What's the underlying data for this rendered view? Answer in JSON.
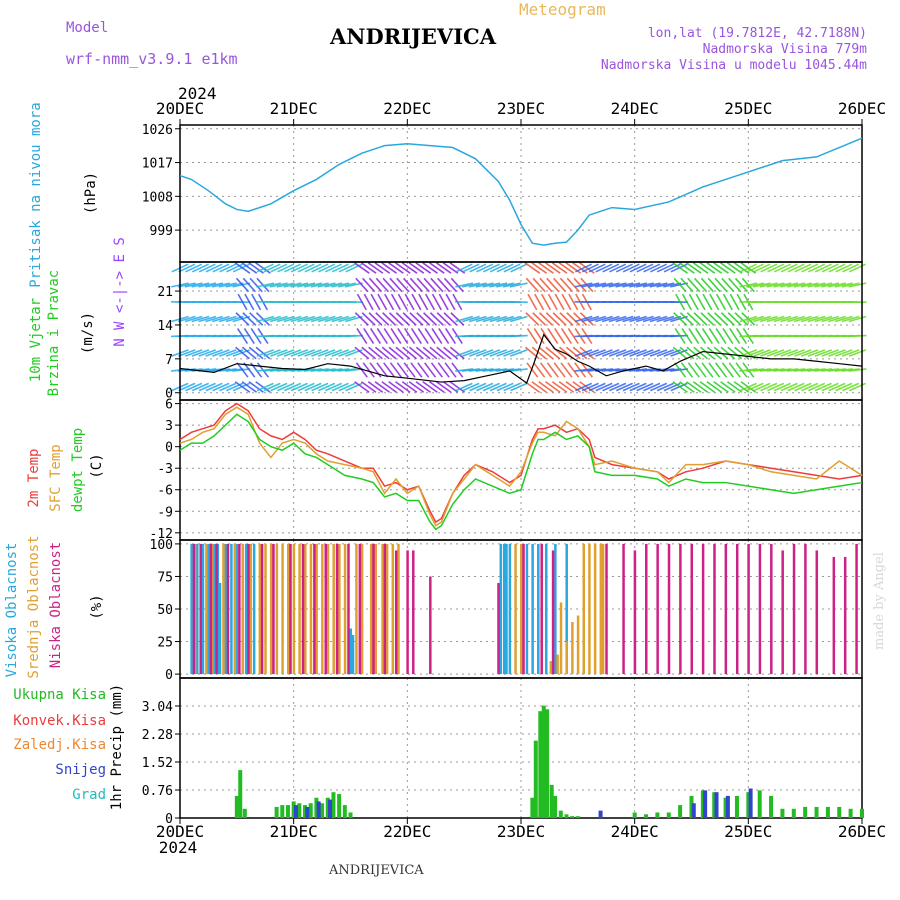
{
  "header": {
    "model_label": "Model",
    "model_name": "wrf-nmm_v3.9.1  e1km",
    "location": "ANDRIJEVICA",
    "chart_kind": "Meteogram",
    "lonlat": "lon,lat (19.7812E, 42.7188N)",
    "altitude": "Nadmorska Visina 779m",
    "model_altitude": "Nadmorska Visina u modelu 1045.44m"
  },
  "footer": {
    "location": "ANDRIJEVICA",
    "credit": "made by Angel"
  },
  "x_axis": {
    "year": "2024",
    "dates": [
      "20DEC",
      "21DEC",
      "22DEC",
      "23DEC",
      "24DEC",
      "25DEC",
      "26DEC"
    ]
  },
  "colors": {
    "pressure": "#2aa7de",
    "temp2m": "#ee3b3b",
    "sfc": "#e0a030",
    "dew": "#22cc22",
    "cloud_high": "#2aa7de",
    "cloud_mid": "#e0a030",
    "cloud_low": "#cc2288",
    "rain_total": "#22bb22",
    "rain_snow": "#3344cc",
    "rain_grad": "#22bbbb",
    "wind_axis": "#9944ff"
  },
  "chart_data": [
    {
      "type": "line",
      "panel": "pressure",
      "ylabels": [
        "Pritisak na nivou mora",
        "(hPa)"
      ],
      "yticks": [
        "1026",
        "1017",
        "1008",
        "999"
      ],
      "ylim": [
        990.5,
        1027
      ],
      "x": [
        0,
        0.1,
        0.25,
        0.4,
        0.5,
        0.6,
        0.8,
        1.0,
        1.2,
        1.4,
        1.6,
        1.8,
        2.0,
        2.2,
        2.4,
        2.6,
        2.8,
        2.9,
        3.0,
        3.1,
        3.2,
        3.3,
        3.4,
        3.5,
        3.6,
        3.7,
        3.8,
        4.0,
        4.3,
        4.6,
        5.0,
        5.3,
        5.6,
        5.8,
        6.0
      ],
      "values": [
        1013.5,
        1012.5,
        1009.5,
        1006.0,
        1004.5,
        1004.0,
        1006.0,
        1009.5,
        1012.5,
        1016.5,
        1019.5,
        1021.5,
        1022.0,
        1021.5,
        1021.0,
        1018.0,
        1012.0,
        1007.0,
        1000.5,
        995.5,
        995.0,
        995.5,
        995.8,
        999.0,
        1003.0,
        1004.0,
        1005.0,
        1004.5,
        1006.5,
        1010.5,
        1014.5,
        1017.5,
        1018.5,
        1021.0,
        1023.5
      ]
    },
    {
      "type": "line",
      "panel": "wind",
      "ylabels": [
        "10m Vjetar",
        "Brzina i Pravac",
        "(m/s)"
      ],
      "yticks": [
        "21",
        "14",
        "7",
        "0"
      ],
      "ylim": [
        -1.5,
        27
      ],
      "direction_legend": "N  W <-|-> E  S",
      "x": [
        0,
        0.3,
        0.5,
        0.7,
        0.9,
        1.1,
        1.3,
        1.5,
        1.65,
        1.8,
        2.0,
        2.3,
        2.5,
        2.7,
        2.9,
        3.05,
        3.12,
        3.2,
        3.3,
        3.4,
        3.5,
        3.6,
        3.75,
        3.9,
        4.1,
        4.25,
        4.4,
        4.6,
        4.8,
        5.0,
        5.2,
        5.4,
        5.6,
        5.8,
        6.0
      ],
      "values": [
        5.0,
        4.2,
        6.0,
        5.5,
        5.0,
        4.8,
        6.0,
        5.5,
        4.5,
        3.5,
        3.0,
        2.2,
        2.5,
        3.5,
        4.5,
        2.0,
        6.5,
        12.0,
        9.0,
        8.0,
        6.5,
        5.5,
        3.5,
        4.5,
        5.5,
        4.5,
        6.5,
        8.5,
        8.0,
        7.5,
        7.0,
        7.0,
        6.5,
        6.0,
        5.5
      ]
    },
    {
      "type": "line",
      "panel": "temperature",
      "ylabels": [
        "2m Temp",
        "SFC Temp",
        "dewpt Temp",
        "(C)"
      ],
      "yticks": [
        "6",
        "3",
        "0",
        "-3",
        "-6",
        "-9",
        "-12"
      ],
      "ylim": [
        -13.0,
        6.5
      ],
      "x": [
        0,
        0.1,
        0.2,
        0.3,
        0.4,
        0.5,
        0.6,
        0.7,
        0.8,
        0.9,
        1.0,
        1.1,
        1.2,
        1.3,
        1.45,
        1.6,
        1.7,
        1.8,
        1.9,
        2.0,
        2.1,
        2.2,
        2.25,
        2.3,
        2.4,
        2.5,
        2.6,
        2.75,
        2.9,
        3.0,
        3.1,
        3.15,
        3.2,
        3.3,
        3.4,
        3.5,
        3.6,
        3.65,
        3.8,
        4.0,
        4.2,
        4.3,
        4.45,
        4.6,
        4.8,
        5.0,
        5.2,
        5.4,
        5.6,
        5.8,
        6.0
      ],
      "series": [
        {
          "name": "2m Temp",
          "values": [
            1.0,
            2.0,
            2.5,
            3.0,
            5.0,
            6.0,
            5.0,
            2.5,
            1.5,
            1.0,
            2.0,
            1.0,
            -0.5,
            -1.0,
            -2.0,
            -3.0,
            -3.0,
            -5.5,
            -5.0,
            -6.0,
            -5.5,
            -9.0,
            -10.5,
            -10.0,
            -6.5,
            -4.0,
            -2.5,
            -3.5,
            -5.0,
            -4.0,
            1.0,
            2.5,
            2.5,
            3.0,
            2.0,
            2.5,
            1.0,
            -1.5,
            -2.5,
            -3.0,
            -3.5,
            -4.5,
            -3.5,
            -3.0,
            -2.0,
            -2.5,
            -3.0,
            -3.5,
            -4.0,
            -4.5,
            -4.0
          ]
        },
        {
          "name": "SFC Temp",
          "values": [
            0.5,
            1.0,
            2.0,
            2.5,
            4.5,
            5.5,
            4.5,
            0.5,
            -1.5,
            0.5,
            1.0,
            0.5,
            -1.0,
            -2.0,
            -2.5,
            -3.0,
            -3.5,
            -6.5,
            -4.5,
            -6.5,
            -5.5,
            -9.5,
            -11.0,
            -10.5,
            -6.5,
            -4.5,
            -2.5,
            -4.0,
            -5.5,
            -3.5,
            0.5,
            2.0,
            2.0,
            1.5,
            3.5,
            2.5,
            0.0,
            -2.5,
            -2.0,
            -3.0,
            -3.5,
            -5.0,
            -2.5,
            -2.5,
            -2.0,
            -2.5,
            -3.5,
            -4.0,
            -4.5,
            -2.0,
            -4.0
          ]
        },
        {
          "name": "dewpt Temp",
          "values": [
            -0.5,
            0.5,
            0.5,
            1.5,
            3.0,
            4.5,
            3.5,
            1.0,
            0.0,
            -0.5,
            0.5,
            -1.0,
            -1.5,
            -2.5,
            -4.0,
            -4.5,
            -5.0,
            -7.0,
            -6.5,
            -7.5,
            -7.5,
            -10.5,
            -11.5,
            -11.0,
            -8.0,
            -6.0,
            -4.5,
            -5.5,
            -6.5,
            -6.0,
            -1.0,
            1.0,
            1.0,
            2.0,
            1.0,
            1.5,
            0.0,
            -3.5,
            -4.0,
            -4.0,
            -4.5,
            -5.5,
            -4.5,
            -5.0,
            -5.0,
            -5.5,
            -6.0,
            -6.5,
            -6.0,
            -5.5,
            -5.0
          ]
        }
      ]
    },
    {
      "type": "bar",
      "panel": "cloud",
      "ylabels": [
        "Visoka Oblacnost",
        "Srednja Oblacnost",
        "Niska Oblacnost",
        "(%)"
      ],
      "yticks": [
        "100",
        "75",
        "50",
        "25",
        "0"
      ],
      "ylim": [
        -3,
        103
      ],
      "series": [
        {
          "name": "Visoka Oblacnost",
          "x": [
            0.1,
            0.15,
            0.2,
            0.25,
            0.3,
            0.33,
            0.35,
            0.4,
            0.45,
            0.5,
            0.58,
            0.65,
            1.5,
            1.52,
            2.82,
            2.85,
            2.87,
            2.9,
            3.05,
            3.1,
            3.15,
            3.22,
            3.3,
            3.4
          ],
          "values": [
            100,
            100,
            100,
            100,
            100,
            100,
            70,
            100,
            100,
            100,
            100,
            100,
            35,
            30,
            100,
            100,
            100,
            100,
            100,
            100,
            100,
            100,
            100,
            100
          ]
        },
        {
          "name": "Srednja Oblacnost",
          "x": [
            0.13,
            0.23,
            0.28,
            0.38,
            0.48,
            0.55,
            0.62,
            0.7,
            0.75,
            0.8,
            0.85,
            0.9,
            0.95,
            1.0,
            1.05,
            1.1,
            1.15,
            1.2,
            1.25,
            1.3,
            1.35,
            1.4,
            1.45,
            1.55,
            1.6,
            1.68,
            1.72,
            1.78,
            1.82,
            1.87,
            1.92,
            2.95,
            3.0,
            3.26,
            3.32,
            3.35,
            3.4,
            3.45,
            3.5,
            3.55,
            3.6,
            3.65,
            3.7,
            3.72
          ],
          "values": [
            100,
            100,
            100,
            100,
            100,
            100,
            100,
            100,
            100,
            100,
            100,
            100,
            100,
            100,
            100,
            100,
            100,
            100,
            100,
            100,
            100,
            100,
            100,
            100,
            100,
            100,
            100,
            100,
            100,
            100,
            100,
            100,
            100,
            10,
            15,
            55,
            25,
            40,
            45,
            100,
            100,
            100,
            100,
            100
          ]
        },
        {
          "name": "Niska Oblacnost",
          "x": [
            0.12,
            0.18,
            0.27,
            0.32,
            0.42,
            0.52,
            0.6,
            0.72,
            0.82,
            0.97,
            1.08,
            1.18,
            1.28,
            1.38,
            1.48,
            1.58,
            1.7,
            1.8,
            1.9,
            2.0,
            2.05,
            2.2,
            2.8,
            3.02,
            3.18,
            3.28,
            3.75,
            3.9,
            4.0,
            4.1,
            4.2,
            4.3,
            4.4,
            4.5,
            4.6,
            4.7,
            4.8,
            4.9,
            5.0,
            5.1,
            5.2,
            5.3,
            5.4,
            5.5,
            5.6,
            5.75,
            5.85,
            5.95
          ],
          "values": [
            100,
            100,
            100,
            100,
            100,
            100,
            100,
            100,
            100,
            100,
            100,
            100,
            100,
            100,
            100,
            100,
            100,
            100,
            95,
            95,
            95,
            75,
            70,
            100,
            100,
            95,
            100,
            100,
            95,
            100,
            100,
            100,
            100,
            100,
            100,
            100,
            100,
            100,
            100,
            100,
            100,
            95,
            100,
            100,
            95,
            90,
            90,
            100
          ]
        }
      ]
    },
    {
      "type": "bar",
      "panel": "precipitation",
      "ylabels": [
        "1hr Precip",
        "(mm)"
      ],
      "legend": [
        "Ukupna Kisa",
        "Konvek.Kisa",
        "Zaledj.Kisa",
        "Snijeg",
        "Grad"
      ],
      "yticks": [
        "3.04",
        "2.28",
        "1.52",
        "0.76",
        "0"
      ],
      "ylim": [
        0,
        3.8
      ],
      "series": [
        {
          "name": "Ukupna Kisa",
          "x": [
            0.5,
            0.53,
            0.57,
            0.85,
            0.9,
            0.95,
            1.0,
            1.05,
            1.1,
            1.15,
            1.2,
            1.25,
            1.3,
            1.35,
            1.4,
            1.45,
            1.5,
            3.1,
            3.13,
            3.17,
            3.2,
            3.23,
            3.27,
            3.3,
            3.35,
            3.4,
            3.45,
            3.5,
            4.0,
            4.1,
            4.2,
            4.3,
            4.4,
            4.5,
            4.6,
            4.7,
            4.8,
            4.9,
            5.0,
            5.1,
            5.2,
            5.3,
            5.4,
            5.5,
            5.6,
            5.7,
            5.8,
            5.9,
            6.0
          ],
          "values": [
            0.6,
            1.3,
            0.25,
            0.3,
            0.35,
            0.35,
            0.45,
            0.4,
            0.35,
            0.4,
            0.55,
            0.4,
            0.55,
            0.7,
            0.65,
            0.35,
            0.15,
            0.55,
            2.1,
            2.9,
            3.05,
            2.95,
            0.9,
            0.6,
            0.2,
            0.1,
            0.05,
            0.05,
            0.15,
            0.1,
            0.15,
            0.15,
            0.35,
            0.6,
            0.75,
            0.7,
            0.55,
            0.6,
            0.7,
            0.75,
            0.6,
            0.25,
            0.25,
            0.3,
            0.3,
            0.3,
            0.3,
            0.25,
            0.25
          ]
        },
        {
          "name": "Snijeg",
          "x": [
            1.02,
            1.12,
            1.22,
            1.32,
            3.7,
            4.52,
            4.62,
            4.72,
            4.82,
            5.02
          ],
          "values": [
            0.35,
            0.3,
            0.45,
            0.5,
            0.2,
            0.4,
            0.75,
            0.7,
            0.6,
            0.8
          ]
        }
      ]
    }
  ]
}
